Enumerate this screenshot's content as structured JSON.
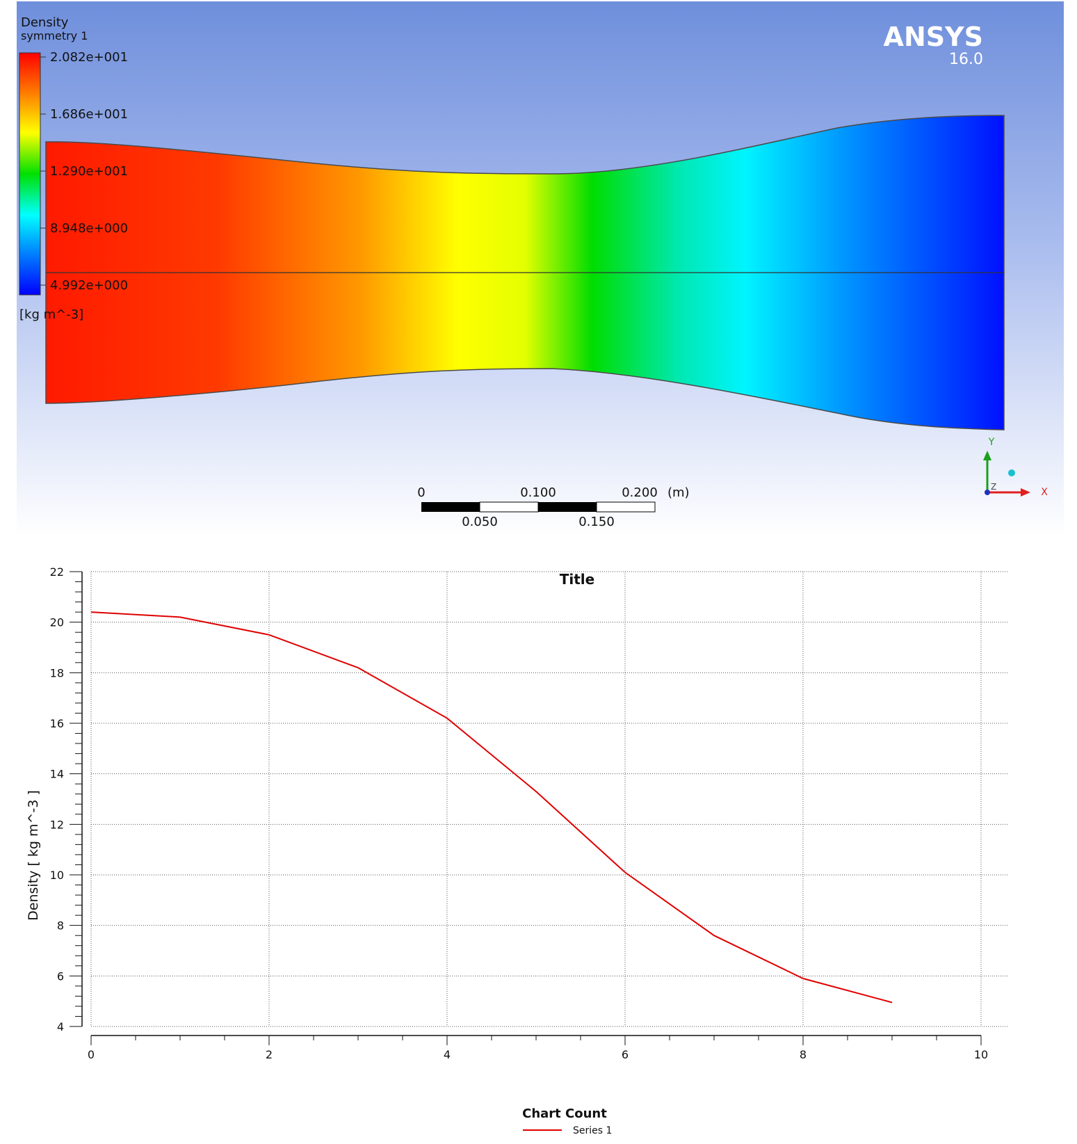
{
  "contour": {
    "legend_title": "Density",
    "legend_subtitle": "symmetry 1",
    "legend_unit": "[kg m^-3]",
    "legend_values": [
      "2.082e+001",
      "1.686e+001",
      "1.290e+001",
      "8.948e+000",
      "4.992e+000"
    ],
    "colormap": [
      "#ff0000",
      "#ff8000",
      "#ffff00",
      "#00e000",
      "#00ffff",
      "#0080ff",
      "#0000ff"
    ],
    "brand": "ANSYS",
    "version": "16.0",
    "scale_top_labels": [
      "0",
      "0.100",
      "0.200"
    ],
    "scale_unit": "(m)",
    "scale_bottom_labels": [
      "0.050",
      "0.150"
    ],
    "axis_labels": [
      "Y",
      "Z",
      "X"
    ]
  },
  "chart_data": {
    "type": "line",
    "title": "Title",
    "xlabel": "Chart Count",
    "ylabel": "Density [ kg m^-3 ]",
    "xlim": [
      0,
      10
    ],
    "ylim": [
      4,
      22
    ],
    "x_ticks": [
      "0",
      "2",
      "4",
      "6",
      "8",
      "10"
    ],
    "y_ticks": [
      "4",
      "6",
      "8",
      "10",
      "12",
      "14",
      "16",
      "18",
      "20",
      "22"
    ],
    "grid": true,
    "legend_position": "bottom-center",
    "series": [
      {
        "name": "Series 1",
        "color": "#e00000",
        "x": [
          0,
          1,
          2,
          3,
          4,
          5,
          6,
          7,
          8,
          9
        ],
        "y": [
          20.4,
          20.2,
          19.5,
          18.2,
          16.2,
          13.3,
          10.1,
          7.6,
          5.9,
          4.95
        ]
      }
    ]
  }
}
